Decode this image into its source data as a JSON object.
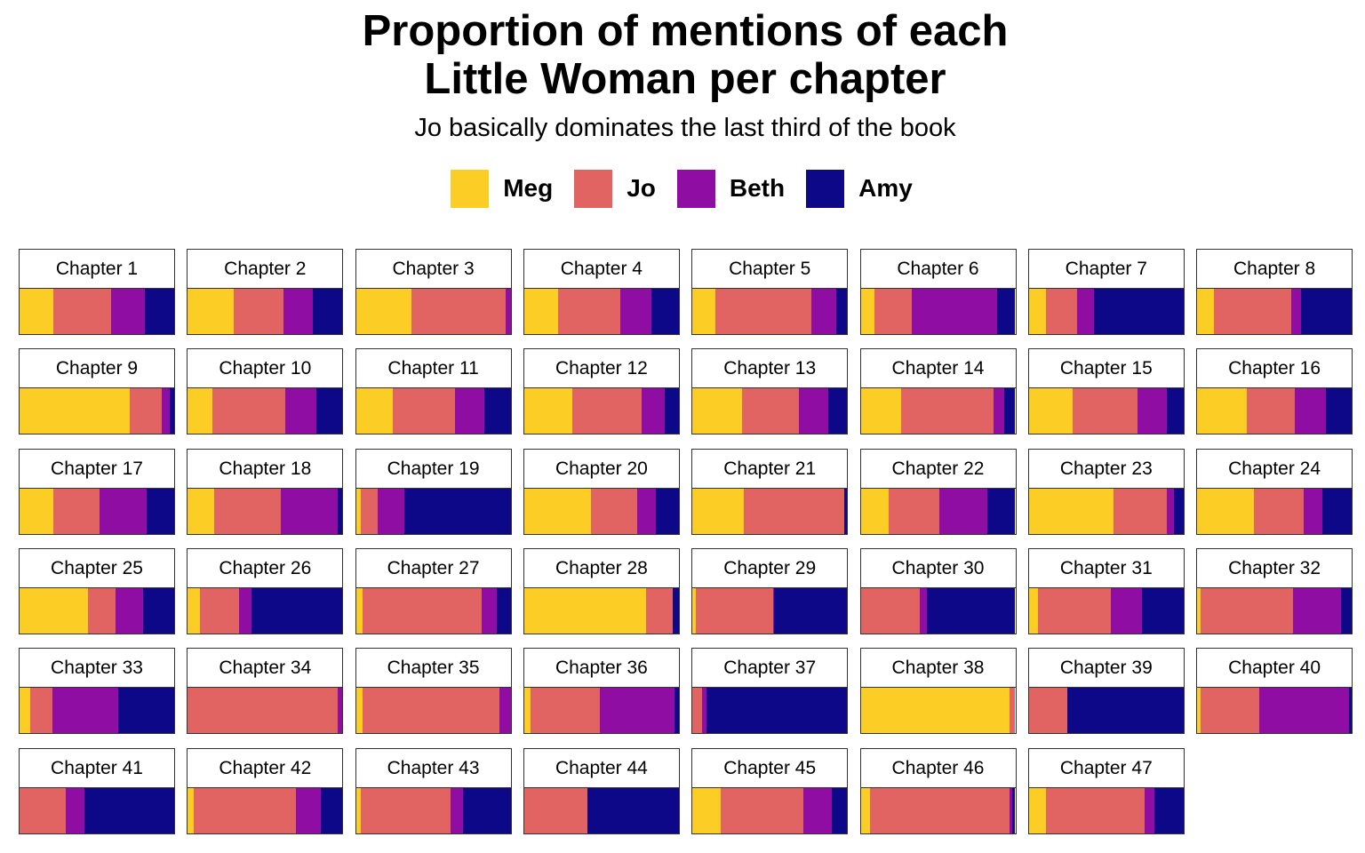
{
  "title": [
    "Proportion of mentions of each",
    "Little Woman per chapter"
  ],
  "subtitle": "Jo basically dominates the last third of the book",
  "colors": {
    "Meg": "#FCCE25",
    "Jo": "#E16462",
    "Beth": "#900DA4",
    "Amy": "#0D0887"
  },
  "chart_data": {
    "type": "bar",
    "orientation": "horizontal-stacked-facets",
    "series_names": [
      "Meg",
      "Jo",
      "Beth",
      "Amy"
    ],
    "legend_placement": "top",
    "facet_label_prefix": "Chapter",
    "xlim": [
      0,
      1
    ],
    "chapters": [
      {
        "chapter": 1,
        "values": [
          0.22,
          0.37,
          0.22,
          0.19
        ]
      },
      {
        "chapter": 2,
        "values": [
          0.3,
          0.32,
          0.19,
          0.19
        ]
      },
      {
        "chapter": 3,
        "values": [
          0.36,
          0.61,
          0.03,
          0.0
        ]
      },
      {
        "chapter": 4,
        "values": [
          0.22,
          0.4,
          0.2,
          0.18
        ]
      },
      {
        "chapter": 5,
        "values": [
          0.15,
          0.62,
          0.16,
          0.07
        ]
      },
      {
        "chapter": 6,
        "values": [
          0.09,
          0.24,
          0.55,
          0.12
        ]
      },
      {
        "chapter": 7,
        "values": [
          0.11,
          0.2,
          0.11,
          0.58
        ]
      },
      {
        "chapter": 8,
        "values": [
          0.11,
          0.5,
          0.06,
          0.33
        ]
      },
      {
        "chapter": 9,
        "values": [
          0.71,
          0.21,
          0.05,
          0.03
        ]
      },
      {
        "chapter": 10,
        "values": [
          0.16,
          0.47,
          0.2,
          0.17
        ]
      },
      {
        "chapter": 11,
        "values": [
          0.24,
          0.4,
          0.19,
          0.17
        ]
      },
      {
        "chapter": 12,
        "values": [
          0.31,
          0.45,
          0.15,
          0.09
        ]
      },
      {
        "chapter": 13,
        "values": [
          0.32,
          0.37,
          0.19,
          0.12
        ]
      },
      {
        "chapter": 14,
        "values": [
          0.26,
          0.6,
          0.07,
          0.07
        ]
      },
      {
        "chapter": 15,
        "values": [
          0.28,
          0.42,
          0.19,
          0.11
        ]
      },
      {
        "chapter": 16,
        "values": [
          0.32,
          0.31,
          0.2,
          0.17
        ]
      },
      {
        "chapter": 17,
        "values": [
          0.22,
          0.3,
          0.3,
          0.18
        ]
      },
      {
        "chapter": 18,
        "values": [
          0.17,
          0.43,
          0.37,
          0.03
        ]
      },
      {
        "chapter": 19,
        "values": [
          0.03,
          0.11,
          0.17,
          0.69
        ]
      },
      {
        "chapter": 20,
        "values": [
          0.43,
          0.3,
          0.12,
          0.15
        ]
      },
      {
        "chapter": 21,
        "values": [
          0.33,
          0.65,
          0.0,
          0.02
        ]
      },
      {
        "chapter": 22,
        "values": [
          0.18,
          0.33,
          0.31,
          0.18
        ]
      },
      {
        "chapter": 23,
        "values": [
          0.55,
          0.34,
          0.05,
          0.06
        ]
      },
      {
        "chapter": 24,
        "values": [
          0.37,
          0.32,
          0.12,
          0.19
        ]
      },
      {
        "chapter": 25,
        "values": [
          0.44,
          0.18,
          0.18,
          0.2
        ]
      },
      {
        "chapter": 26,
        "values": [
          0.08,
          0.25,
          0.08,
          0.59
        ]
      },
      {
        "chapter": 27,
        "values": [
          0.04,
          0.77,
          0.1,
          0.09
        ]
      },
      {
        "chapter": 28,
        "values": [
          0.79,
          0.17,
          0.0,
          0.04
        ]
      },
      {
        "chapter": 29,
        "values": [
          0.02,
          0.5,
          0.01,
          0.47
        ]
      },
      {
        "chapter": 30,
        "values": [
          0.0,
          0.38,
          0.05,
          0.57
        ]
      },
      {
        "chapter": 31,
        "values": [
          0.06,
          0.47,
          0.2,
          0.27
        ]
      },
      {
        "chapter": 32,
        "values": [
          0.02,
          0.6,
          0.31,
          0.07
        ]
      },
      {
        "chapter": 33,
        "values": [
          0.07,
          0.14,
          0.43,
          0.36
        ]
      },
      {
        "chapter": 34,
        "values": [
          0.0,
          0.97,
          0.03,
          0.0
        ]
      },
      {
        "chapter": 35,
        "values": [
          0.04,
          0.89,
          0.07,
          0.0
        ]
      },
      {
        "chapter": 36,
        "values": [
          0.04,
          0.45,
          0.48,
          0.03
        ]
      },
      {
        "chapter": 37,
        "values": [
          0.0,
          0.06,
          0.03,
          0.91
        ]
      },
      {
        "chapter": 38,
        "values": [
          0.96,
          0.04,
          0.0,
          0.0
        ]
      },
      {
        "chapter": 39,
        "values": [
          0.0,
          0.25,
          0.0,
          0.75
        ]
      },
      {
        "chapter": 40,
        "values": [
          0.02,
          0.38,
          0.58,
          0.02
        ]
      },
      {
        "chapter": 41,
        "values": [
          0.0,
          0.3,
          0.12,
          0.58
        ]
      },
      {
        "chapter": 42,
        "values": [
          0.04,
          0.66,
          0.16,
          0.14
        ]
      },
      {
        "chapter": 43,
        "values": [
          0.03,
          0.58,
          0.08,
          0.31
        ]
      },
      {
        "chapter": 44,
        "values": [
          0.0,
          0.41,
          0.0,
          0.59
        ]
      },
      {
        "chapter": 45,
        "values": [
          0.18,
          0.54,
          0.18,
          0.1
        ]
      },
      {
        "chapter": 46,
        "values": [
          0.06,
          0.9,
          0.02,
          0.02
        ]
      },
      {
        "chapter": 47,
        "values": [
          0.11,
          0.64,
          0.06,
          0.19
        ]
      }
    ]
  }
}
